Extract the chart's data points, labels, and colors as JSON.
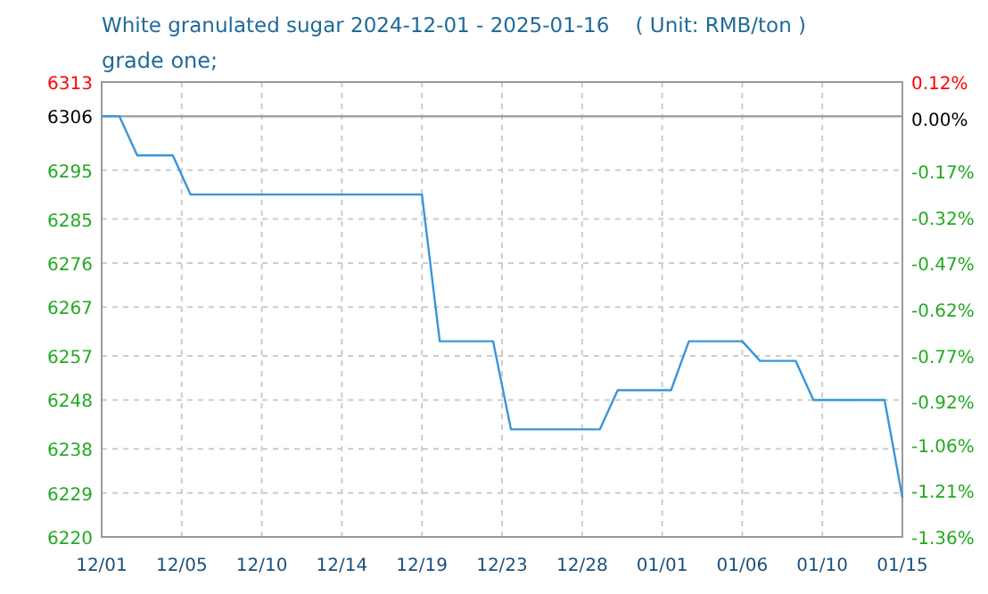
{
  "chart_data": {
    "type": "line",
    "title": "White granulated sugar 2024-12-01 - 2025-01-16    ( Unit: RMB/ton )",
    "subtitle": "grade one;",
    "x": [
      "2024-12-01",
      "2024-12-02",
      "2024-12-03",
      "2024-12-04",
      "2024-12-05",
      "2024-12-06",
      "2024-12-07",
      "2024-12-08",
      "2024-12-09",
      "2024-12-10",
      "2024-12-11",
      "2024-12-12",
      "2024-12-13",
      "2024-12-14",
      "2024-12-15",
      "2024-12-16",
      "2024-12-17",
      "2024-12-18",
      "2024-12-19",
      "2024-12-20",
      "2024-12-21",
      "2024-12-22",
      "2024-12-23",
      "2024-12-24",
      "2024-12-25",
      "2024-12-26",
      "2024-12-27",
      "2024-12-28",
      "2024-12-29",
      "2024-12-30",
      "2024-12-31",
      "2025-01-01",
      "2025-01-02",
      "2025-01-03",
      "2025-01-04",
      "2025-01-05",
      "2025-01-06",
      "2025-01-07",
      "2025-01-08",
      "2025-01-09",
      "2025-01-10",
      "2025-01-11",
      "2025-01-12",
      "2025-01-13",
      "2025-01-14",
      "2025-01-15"
    ],
    "series": [
      {
        "color": "#3a95d8",
        "values": [
          6306,
          6306,
          6298,
          6298,
          6298,
          6290,
          6290,
          6290,
          6290,
          6290,
          6290,
          6290,
          6290,
          6290,
          6290,
          6290,
          6290,
          6290,
          6290,
          6260,
          6260,
          6260,
          6260,
          6242,
          6242,
          6242,
          6242,
          6242,
          6242,
          6250,
          6250,
          6250,
          6250,
          6260,
          6260,
          6260,
          6260,
          6256,
          6256,
          6256,
          6248,
          6248,
          6248,
          6248,
          6248,
          6228
        ]
      }
    ],
    "xlim": [
      "2024-12-01",
      "2025-01-15"
    ],
    "xticks": [
      {
        "value": "2024-12-01",
        "label": "12/01"
      },
      {
        "value": "2024-12-05T12:00",
        "label": "12/05"
      },
      {
        "value": "2024-12-10",
        "label": "12/10"
      },
      {
        "value": "2024-12-14T12:00",
        "label": "12/14"
      },
      {
        "value": "2024-12-19",
        "label": "12/19"
      },
      {
        "value": "2024-12-23T12:00",
        "label": "12/23"
      },
      {
        "value": "2024-12-28",
        "label": "12/28"
      },
      {
        "value": "2025-01-01T12:00",
        "label": "01/01"
      },
      {
        "value": "2025-01-06",
        "label": "01/06"
      },
      {
        "value": "2025-01-10T12:00",
        "label": "01/10"
      },
      {
        "value": "2025-01-15",
        "label": "01/15"
      }
    ],
    "ylim": [
      6220,
      6313
    ],
    "yticks": [
      6220,
      6229,
      6238,
      6248,
      6257,
      6267,
      6276,
      6285,
      6295,
      6313
    ],
    "y2lim": [
      -1.36,
      0.12
    ],
    "y2ticks": [
      {
        "value": -1.36,
        "label": "-1.36%"
      },
      {
        "value": -1.21,
        "label": "-1.21%"
      },
      {
        "value": -1.06,
        "label": "-1.06%"
      },
      {
        "value": -0.92,
        "label": "-0.92%"
      },
      {
        "value": -0.77,
        "label": "-0.77%"
      },
      {
        "value": -0.62,
        "label": "-0.62%"
      },
      {
        "value": -0.47,
        "label": "-0.47%"
      },
      {
        "value": -0.32,
        "label": "-0.32%"
      },
      {
        "value": -0.17,
        "label": "-0.17%"
      },
      {
        "value": 0,
        "label": "0.00%"
      },
      {
        "value": 0.12,
        "label": "0.12%"
      }
    ],
    "ref_lines": [
      {
        "axis": "y",
        "value": 6306,
        "label": "6306",
        "color": "#999999"
      }
    ],
    "grid": true,
    "marker": "none",
    "line_style": "solid"
  }
}
